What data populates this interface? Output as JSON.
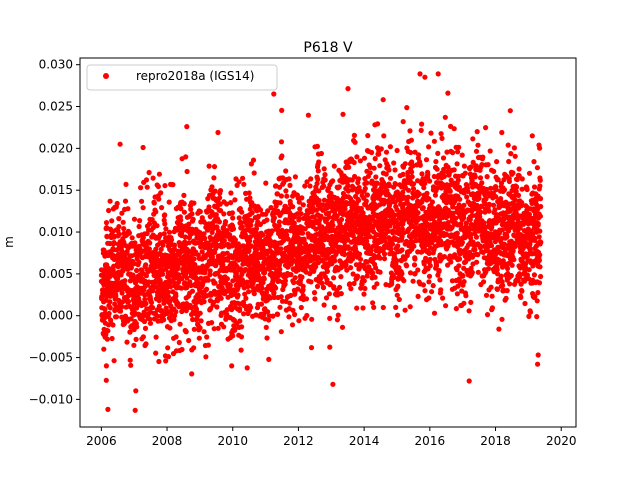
{
  "figure": {
    "title": "P618 V",
    "ylabel": "m",
    "legend_label": "repro2018a (IGS14)"
  },
  "chart_data": {
    "type": "scatter",
    "title": "P618 V",
    "xlabel": "",
    "ylabel": "m",
    "xlim": [
      2005.35,
      2020.45
    ],
    "ylim": [
      -0.0133,
      0.0308
    ],
    "xticks": [
      2006,
      2008,
      2010,
      2012,
      2014,
      2016,
      2018,
      2020
    ],
    "xtick_labels": [
      "2006",
      "2008",
      "2010",
      "2012",
      "2014",
      "2016",
      "2018",
      "2020"
    ],
    "yticks": [
      -0.01,
      -0.005,
      0.0,
      0.005,
      0.01,
      0.015,
      0.02,
      0.025,
      0.03
    ],
    "ytick_labels": [
      "−0.010",
      "−0.005",
      "0.000",
      "0.005",
      "0.010",
      "0.015",
      "0.020",
      "0.025",
      "0.030"
    ],
    "legend_position": "upper-left",
    "grid": false,
    "series": [
      {
        "name": "repro2018a (IGS14)",
        "color": "#ff0000",
        "marker": "circle",
        "x_start": 2006.0,
        "x_end": 2019.38,
        "trend_x": [
          2006.0,
          2007.0,
          2008.0,
          2009.0,
          2010.0,
          2011.0,
          2012.0,
          2013.0,
          2014.0,
          2015.0,
          2016.0,
          2017.0,
          2018.0,
          2019.0,
          2019.38
        ],
        "trend_y": [
          0.004,
          0.0045,
          0.0055,
          0.006,
          0.006,
          0.007,
          0.0085,
          0.01,
          0.011,
          0.0115,
          0.0115,
          0.011,
          0.0105,
          0.01,
          0.01
        ],
        "scatter_std": 0.0048,
        "outliers": [
          {
            "x": 2006.2,
            "y": -0.0112
          },
          {
            "x": 2007.03,
            "y": -0.0113
          },
          {
            "x": 2006.57,
            "y": 0.0205
          },
          {
            "x": 2007.27,
            "y": 0.0201
          },
          {
            "x": 2008.6,
            "y": 0.0226
          },
          {
            "x": 2009.55,
            "y": 0.0219
          },
          {
            "x": 2011.25,
            "y": 0.0265
          },
          {
            "x": 2013.05,
            "y": -0.0082
          },
          {
            "x": 2015.7,
            "y": 0.0289
          },
          {
            "x": 2015.85,
            "y": 0.0285
          },
          {
            "x": 2016.55,
            "y": 0.0266
          },
          {
            "x": 2018.45,
            "y": 0.0245
          },
          {
            "x": 2017.2,
            "y": -0.0078
          },
          {
            "x": 2019.3,
            "y": -0.0047
          },
          {
            "x": 2019.28,
            "y": -0.0058
          }
        ]
      }
    ]
  }
}
